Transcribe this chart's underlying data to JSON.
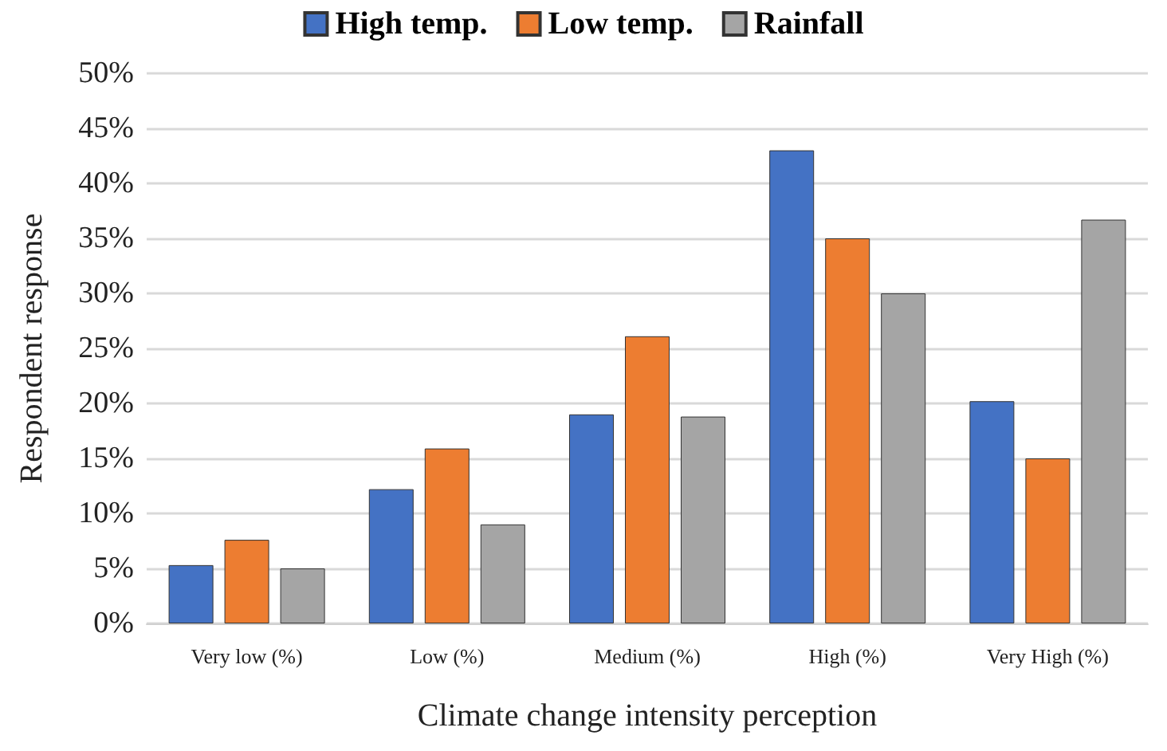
{
  "chart_data": {
    "type": "bar",
    "xlabel": "Climate change intensity perception",
    "ylabel": "Respondent response",
    "categories": [
      "Very low (%)",
      "Low (%)",
      "Medium (%)",
      "High (%)",
      "Very High (%)"
    ],
    "series": [
      {
        "name": "High temp.",
        "color": "#4472c4",
        "values": [
          5.3,
          12.2,
          19,
          43,
          20.2
        ]
      },
      {
        "name": "Low temp.",
        "color": "#ed7d31",
        "values": [
          7.6,
          15.9,
          26.1,
          35,
          15
        ]
      },
      {
        "name": "Rainfall",
        "color": "#a5a5a5",
        "values": [
          5,
          9,
          18.8,
          30,
          36.7
        ]
      }
    ],
    "ylim": [
      0,
      50
    ],
    "yticks": [
      {
        "value": 0,
        "label": "0%"
      },
      {
        "value": 5,
        "label": "5%"
      },
      {
        "value": 10,
        "label": "10%"
      },
      {
        "value": 15,
        "label": "15%"
      },
      {
        "value": 20,
        "label": "20%"
      },
      {
        "value": 25,
        "label": "25%"
      },
      {
        "value": 30,
        "label": "30%"
      },
      {
        "value": 35,
        "label": "35%"
      },
      {
        "value": 40,
        "label": "40%"
      },
      {
        "value": 45,
        "label": "45%"
      },
      {
        "value": 50,
        "label": "50%"
      }
    ],
    "grid": "y",
    "legend": "top"
  }
}
